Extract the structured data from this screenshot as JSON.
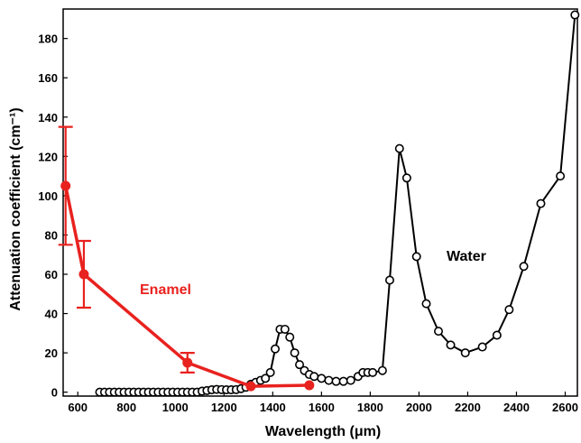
{
  "chart_data": {
    "type": "line",
    "xlabel": "Wavelength (μm)",
    "ylabel": "Attenuation coefficient (cm⁻¹)",
    "xlim": [
      540,
      2650
    ],
    "ylim": [
      -2,
      195
    ],
    "x_ticks": [
      "600",
      "800",
      "1000",
      "1200",
      "1400",
      "1600",
      "1800",
      "2000",
      "2200",
      "2400",
      "2600"
    ],
    "y_ticks": [
      "0",
      "20",
      "40",
      "60",
      "80",
      "100",
      "120",
      "140",
      "160",
      "180"
    ],
    "grid": false,
    "series": [
      {
        "name": "Water",
        "color": "#000000",
        "marker": "open-circle",
        "points": [
          [
            690,
            0
          ],
          [
            710,
            0
          ],
          [
            730,
            0
          ],
          [
            750,
            0
          ],
          [
            770,
            0
          ],
          [
            790,
            0
          ],
          [
            810,
            0
          ],
          [
            830,
            0
          ],
          [
            850,
            0
          ],
          [
            870,
            0
          ],
          [
            890,
            0
          ],
          [
            910,
            0
          ],
          [
            930,
            0
          ],
          [
            950,
            0
          ],
          [
            970,
            0
          ],
          [
            990,
            0
          ],
          [
            1010,
            0
          ],
          [
            1030,
            0
          ],
          [
            1050,
            0
          ],
          [
            1070,
            0
          ],
          [
            1090,
            0
          ],
          [
            1110,
            0.5
          ],
          [
            1130,
            0.8
          ],
          [
            1150,
            1.2
          ],
          [
            1170,
            1.4
          ],
          [
            1190,
            1.3
          ],
          [
            1210,
            1.2
          ],
          [
            1230,
            1.2
          ],
          [
            1250,
            1.3
          ],
          [
            1270,
            1.8
          ],
          [
            1290,
            2.5
          ],
          [
            1310,
            4
          ],
          [
            1330,
            5
          ],
          [
            1350,
            6
          ],
          [
            1370,
            7
          ],
          [
            1390,
            10
          ],
          [
            1410,
            22
          ],
          [
            1430,
            32
          ],
          [
            1450,
            32
          ],
          [
            1470,
            28
          ],
          [
            1490,
            20
          ],
          [
            1510,
            14
          ],
          [
            1530,
            11
          ],
          [
            1550,
            9
          ],
          [
            1570,
            8
          ],
          [
            1600,
            7
          ],
          [
            1630,
            6
          ],
          [
            1660,
            5.5
          ],
          [
            1690,
            5.5
          ],
          [
            1720,
            6
          ],
          [
            1750,
            8
          ],
          [
            1770,
            10
          ],
          [
            1790,
            10
          ],
          [
            1810,
            10
          ],
          [
            1850,
            11
          ],
          [
            1880,
            57
          ],
          [
            1920,
            124
          ],
          [
            1950,
            109
          ],
          [
            1990,
            69
          ],
          [
            2030,
            45
          ],
          [
            2080,
            31
          ],
          [
            2130,
            24
          ],
          [
            2190,
            20
          ],
          [
            2260,
            23
          ],
          [
            2320,
            29
          ],
          [
            2370,
            42
          ],
          [
            2430,
            64
          ],
          [
            2500,
            96
          ],
          [
            2580,
            110
          ],
          [
            2640,
            192
          ]
        ]
      },
      {
        "name": "Enamel",
        "color": "#e8221f",
        "marker": "filled-circle",
        "points": [
          [
            550,
            105
          ],
          [
            625,
            60
          ],
          [
            1050,
            15
          ],
          [
            1310,
            3
          ],
          [
            1550,
            3.5
          ]
        ],
        "error": [
          30,
          17,
          5,
          null,
          null
        ]
      }
    ]
  }
}
